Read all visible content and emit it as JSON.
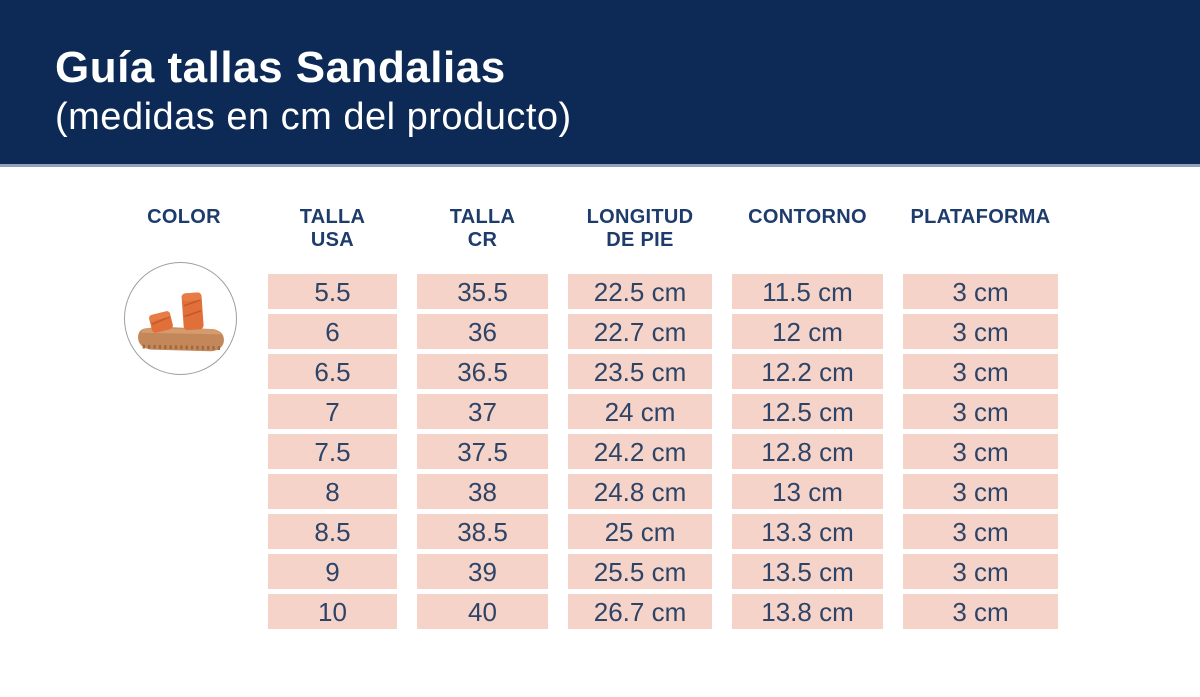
{
  "header": {
    "title": "Guía tallas Sandalias",
    "subtitle": "(medidas en cm del producto)"
  },
  "table": {
    "columns": [
      {
        "id": "color",
        "lines": [
          "COLOR"
        ]
      },
      {
        "id": "talla-usa",
        "lines": [
          "TALLA",
          "USA"
        ]
      },
      {
        "id": "talla-cr",
        "lines": [
          "TALLA",
          "CR"
        ]
      },
      {
        "id": "longitud-de-pie",
        "lines": [
          "LONGITUD",
          "DE PIE"
        ]
      },
      {
        "id": "contorno",
        "lines": [
          "CONTORNO"
        ]
      },
      {
        "id": "plataforma",
        "lines": [
          "PLATAFORMA"
        ]
      }
    ],
    "rows": [
      [
        "5.5",
        "35.5",
        "22.5 cm",
        "11.5 cm",
        "3 cm"
      ],
      [
        "6",
        "36",
        "22.7 cm",
        "12 cm",
        "3 cm"
      ],
      [
        "6.5",
        "36.5",
        "23.5 cm",
        "12.2 cm",
        "3 cm"
      ],
      [
        "7",
        "37",
        "24 cm",
        "12.5 cm",
        "3 cm"
      ],
      [
        "7.5",
        "37.5",
        "24.2 cm",
        "12.8 cm",
        "3 cm"
      ],
      [
        "8",
        "38",
        "24.8 cm",
        "13 cm",
        "3 cm"
      ],
      [
        "8.5",
        "38.5",
        "25 cm",
        "13.3 cm",
        "3 cm"
      ],
      [
        "9",
        "39",
        "25.5 cm",
        "13.5 cm",
        "3 cm"
      ],
      [
        "10",
        "40",
        "26.7 cm",
        "13.8 cm",
        "3 cm"
      ]
    ]
  },
  "color_column": {
    "image_description": "orange double-strap platform sandal in white circle"
  },
  "colors": {
    "banner_navy": "#0c2a55",
    "header_text_navy": "#1d3b6b",
    "cell_pink": "#f6d3c8",
    "cell_text_navy": "#2d4469",
    "strap_orange": "#e06f3a",
    "sole_tan": "#c4875a"
  },
  "chart_data": {
    "type": "table",
    "title": "Guía tallas Sandalias (medidas en cm del producto)",
    "columns": [
      "COLOR",
      "TALLA USA",
      "TALLA CR",
      "LONGITUD DE PIE",
      "CONTORNO",
      "PLATAFORMA"
    ],
    "rows": [
      [
        "sandalia naranja",
        "5.5",
        "35.5",
        "22.5 cm",
        "11.5 cm",
        "3 cm"
      ],
      [
        "",
        "6",
        "36",
        "22.7 cm",
        "12 cm",
        "3 cm"
      ],
      [
        "",
        "6.5",
        "36.5",
        "23.5 cm",
        "12.2 cm",
        "3 cm"
      ],
      [
        "",
        "7",
        "37",
        "24 cm",
        "12.5 cm",
        "3 cm"
      ],
      [
        "",
        "7.5",
        "37.5",
        "24.2 cm",
        "12.8 cm",
        "3 cm"
      ],
      [
        "",
        "8",
        "38",
        "24.8 cm",
        "13 cm",
        "3 cm"
      ],
      [
        "",
        "8.5",
        "38.5",
        "25 cm",
        "13.3 cm",
        "3 cm"
      ],
      [
        "",
        "9",
        "39",
        "25.5 cm",
        "13.5 cm",
        "3 cm"
      ],
      [
        "",
        "10",
        "40",
        "26.7 cm",
        "13.8 cm",
        "3 cm"
      ]
    ]
  }
}
